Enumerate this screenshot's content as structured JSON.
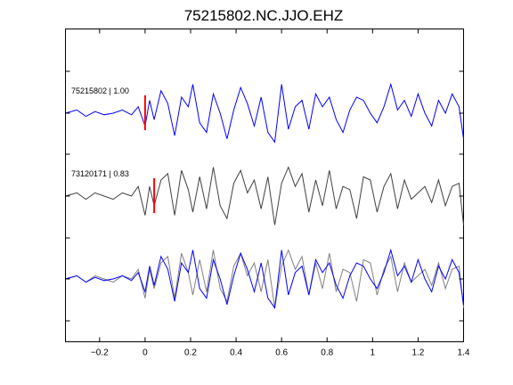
{
  "chart_data": {
    "type": "line",
    "title": "75215802.NC.JJO.EHZ",
    "xlabel": "",
    "ylabel": "",
    "xlim": [
      -0.35,
      1.4
    ],
    "x_ticks": [
      -0.2,
      0,
      0.2,
      0.4,
      0.6,
      0.8,
      1,
      1.2,
      1.4
    ],
    "x_tick_labels": [
      "−0.2",
      "0",
      "0.2",
      "0.4",
      "0.6",
      "0.8",
      "1",
      "1.2",
      "1.4"
    ],
    "grid": false,
    "panels": [
      {
        "label": "75215802 | 1.00",
        "color": "#0000ff",
        "pick_time": 0.0,
        "pick_color": "#ff0000",
        "x": [
          -0.35,
          -0.3,
          -0.26,
          -0.22,
          -0.18,
          -0.14,
          -0.1,
          -0.06,
          -0.03,
          0.0,
          0.02,
          0.04,
          0.07,
          0.1,
          0.13,
          0.16,
          0.19,
          0.21,
          0.24,
          0.27,
          0.3,
          0.33,
          0.36,
          0.39,
          0.42,
          0.45,
          0.48,
          0.51,
          0.54,
          0.57,
          0.6,
          0.63,
          0.66,
          0.69,
          0.72,
          0.75,
          0.78,
          0.81,
          0.84,
          0.87,
          0.9,
          0.93,
          0.96,
          0.99,
          1.02,
          1.05,
          1.08,
          1.11,
          1.14,
          1.17,
          1.2,
          1.23,
          1.26,
          1.29,
          1.32,
          1.35,
          1.38,
          1.4
        ],
        "y": [
          0.0,
          0.1,
          -0.1,
          0.05,
          -0.05,
          0.0,
          0.1,
          -0.05,
          0.2,
          -0.4,
          0.4,
          -0.2,
          0.7,
          0.3,
          -0.7,
          0.5,
          0.2,
          0.9,
          -0.3,
          -0.6,
          0.6,
          0.0,
          -0.8,
          0.1,
          0.8,
          0.3,
          -0.4,
          0.5,
          -0.6,
          -0.9,
          0.9,
          -0.5,
          0.2,
          0.4,
          -0.5,
          0.6,
          0.2,
          0.5,
          -0.2,
          -0.6,
          0.1,
          0.5,
          0.4,
          0.0,
          -0.3,
          0.2,
          0.9,
          0.1,
          0.4,
          -0.1,
          0.6,
          0.0,
          -0.4,
          0.4,
          0.0,
          0.6,
          0.2,
          -0.8
        ]
      },
      {
        "label": "73120171 | 0.83",
        "color": "#404040",
        "pick_time": 0.04,
        "pick_color": "#ff0000",
        "x": [
          -0.35,
          -0.3,
          -0.26,
          -0.22,
          -0.18,
          -0.14,
          -0.1,
          -0.06,
          -0.03,
          0.0,
          0.02,
          0.04,
          0.07,
          0.1,
          0.13,
          0.16,
          0.19,
          0.21,
          0.24,
          0.27,
          0.3,
          0.33,
          0.36,
          0.39,
          0.42,
          0.45,
          0.48,
          0.51,
          0.54,
          0.57,
          0.6,
          0.63,
          0.66,
          0.69,
          0.72,
          0.75,
          0.78,
          0.81,
          0.84,
          0.87,
          0.9,
          0.93,
          0.96,
          0.99,
          1.02,
          1.05,
          1.08,
          1.11,
          1.14,
          1.17,
          1.2,
          1.23,
          1.26,
          1.29,
          1.32,
          1.35,
          1.38,
          1.4
        ],
        "y": [
          0.0,
          0.1,
          -0.1,
          0.1,
          0.0,
          -0.1,
          0.1,
          0.0,
          0.3,
          -0.6,
          0.3,
          -0.3,
          0.5,
          0.7,
          -0.6,
          0.8,
          0.2,
          -0.5,
          0.6,
          -0.4,
          0.9,
          -0.3,
          -0.7,
          0.4,
          0.8,
          0.1,
          0.5,
          -0.4,
          0.6,
          -0.9,
          0.4,
          0.9,
          0.3,
          0.7,
          -0.5,
          0.5,
          -0.3,
          0.8,
          -0.4,
          0.3,
          0.2,
          -0.7,
          0.6,
          0.5,
          -0.5,
          0.3,
          0.7,
          -0.4,
          0.5,
          -0.1,
          0.1,
          0.3,
          -0.2,
          0.5,
          -0.3,
          0.3,
          0.4,
          -0.9
        ]
      },
      {
        "label": "",
        "overlay": true,
        "series": [
          {
            "color": "#0000ff",
            "trace": 0
          },
          {
            "color": "#808080",
            "trace": 1
          }
        ]
      }
    ]
  }
}
